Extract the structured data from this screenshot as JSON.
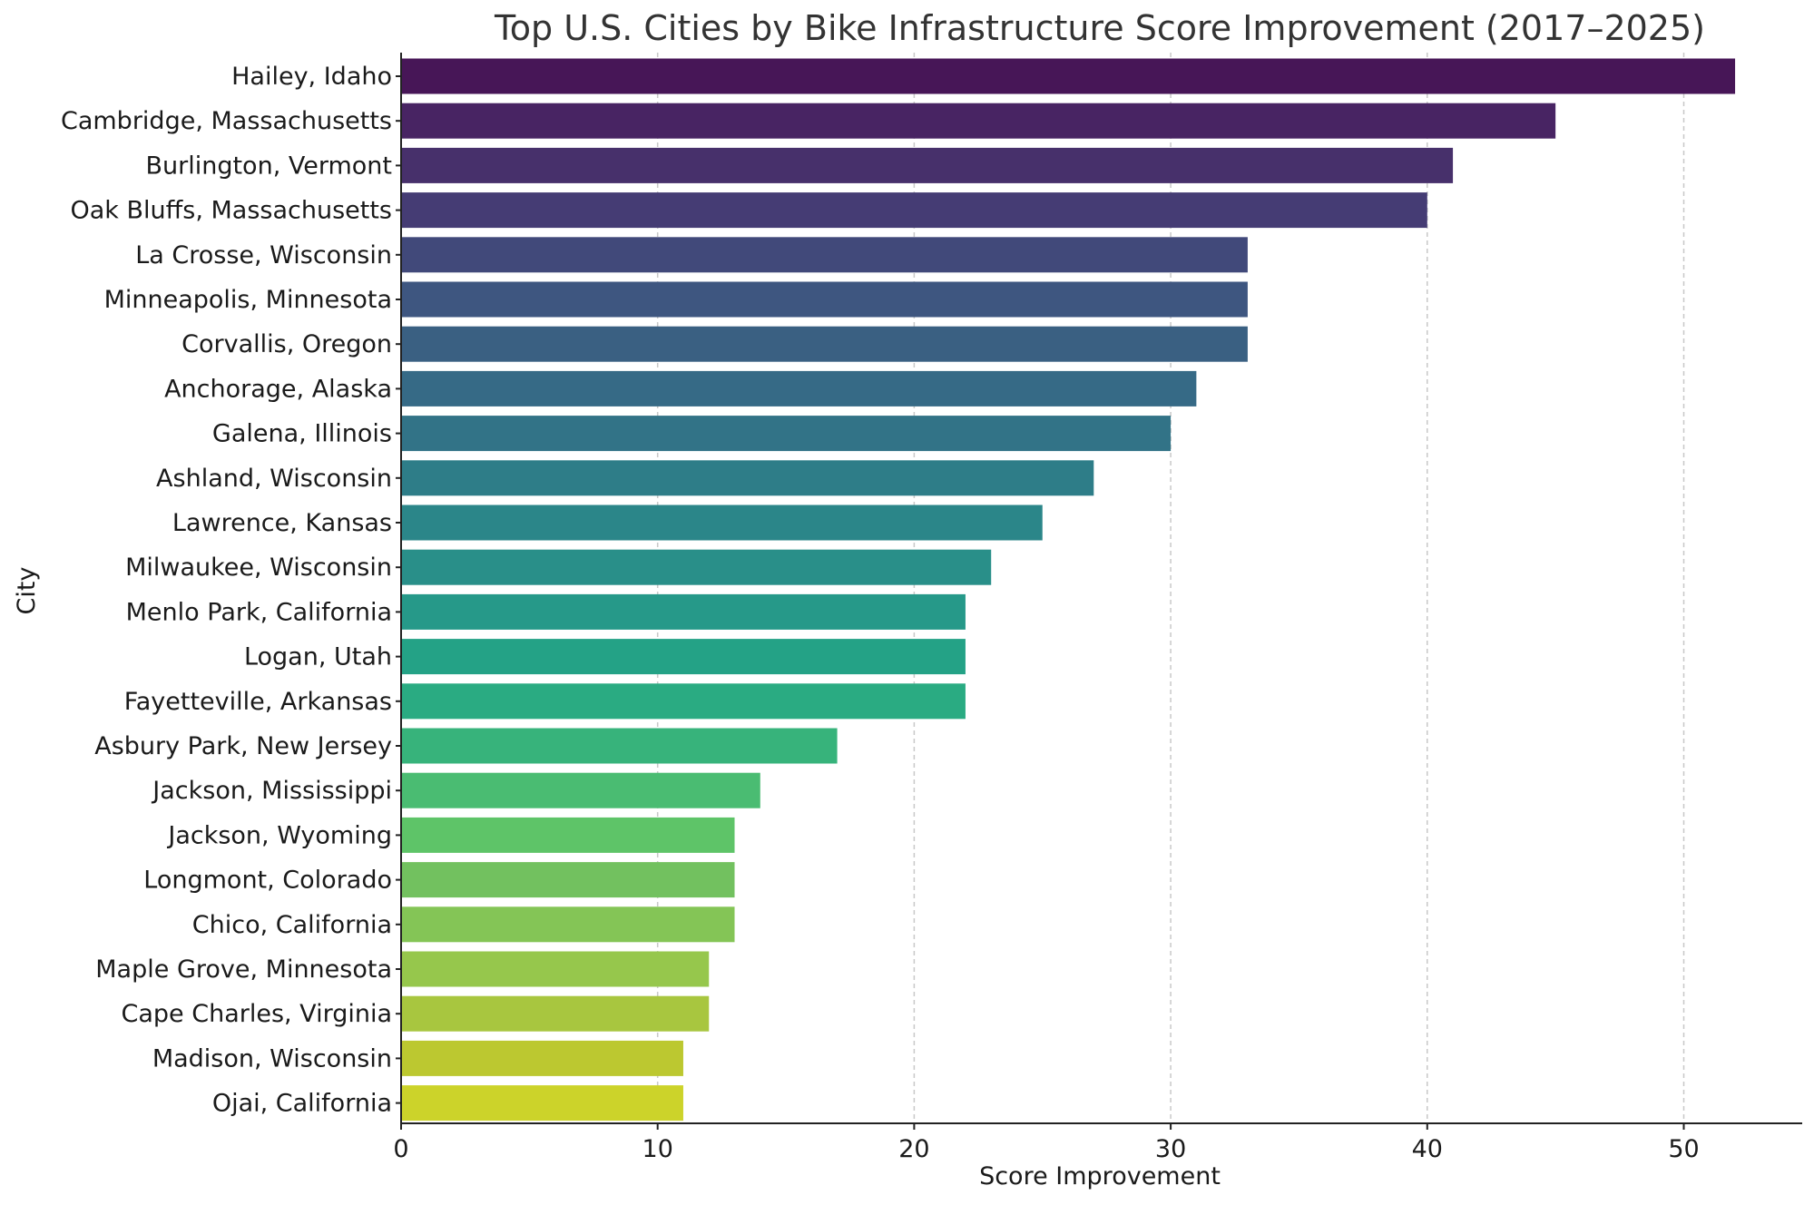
{
  "chart_data": {
    "type": "bar",
    "orientation": "horizontal",
    "title": "Top U.S. Cities by Bike Infrastructure Score Improvement (2017–2025)",
    "xlabel": "Score Improvement",
    "ylabel": "City",
    "xlim": [
      0,
      54.6
    ],
    "xticks": [
      0,
      10,
      20,
      30,
      40,
      50
    ],
    "grid": "x-dashed",
    "colormap": "viridis",
    "categories": [
      "Hailey, Idaho",
      "Cambridge, Massachusetts",
      "Burlington, Vermont",
      "Oak Bluffs, Massachusetts",
      "La Crosse, Wisconsin",
      "Minneapolis, Minnesota",
      "Corvallis, Oregon",
      "Anchorage, Alaska",
      "Galena, Illinois",
      "Ashland, Wisconsin",
      "Lawrence, Kansas",
      "Milwaukee, Wisconsin",
      "Menlo Park, California",
      "Logan, Utah",
      "Fayetteville, Arkansas",
      "Asbury Park, New Jersey",
      "Jackson, Mississippi",
      "Jackson, Wyoming",
      "Longmont, Colorado",
      "Chico, California",
      "Maple Grove, Minnesota",
      "Cape Charles, Virginia",
      "Madison, Wisconsin",
      "Ojai, California"
    ],
    "values": [
      52,
      45,
      41,
      40,
      33,
      33,
      33,
      31,
      30,
      27,
      25,
      23,
      22,
      22,
      22,
      17,
      14,
      13,
      13,
      13,
      12,
      12,
      11,
      11
    ],
    "colors": [
      "#471657",
      "#482463",
      "#47306b",
      "#453c74",
      "#41497a",
      "#3e5680",
      "#3a6082",
      "#366a86",
      "#327387",
      "#2e7d88",
      "#2b8689",
      "#298f89",
      "#269989",
      "#24a286",
      "#2aab82",
      "#37b37b",
      "#4abc72",
      "#5ec468",
      "#72c15f",
      "#84c556",
      "#96c74c",
      "#a8c63f",
      "#bcc830",
      "#ccd32a"
    ]
  }
}
